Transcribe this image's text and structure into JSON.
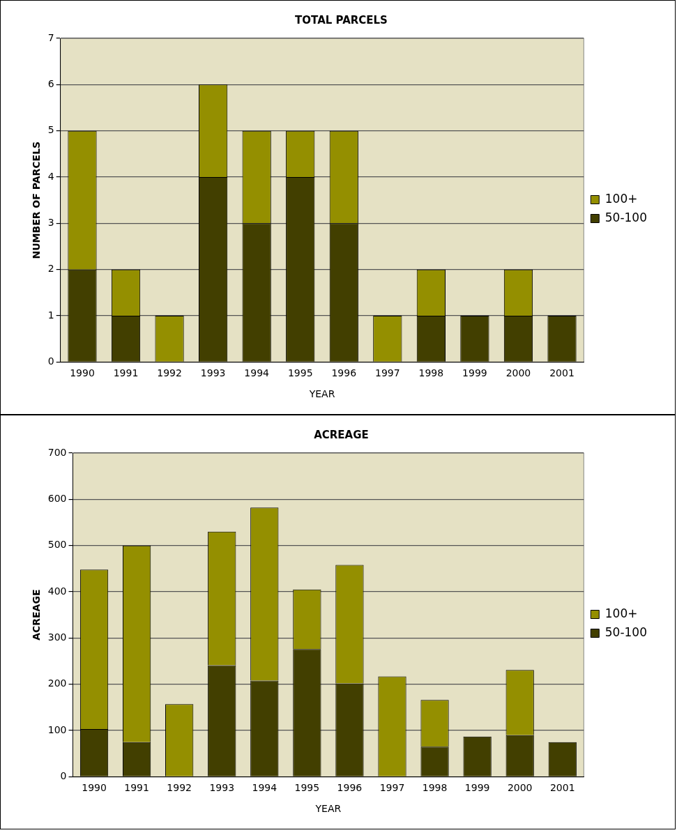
{
  "chart_data": [
    {
      "type": "bar",
      "title": "TOTAL PARCELS",
      "xlabel": "YEAR",
      "ylabel": "NUMBER OF PARCELS",
      "categories": [
        "1990",
        "1991",
        "1992",
        "1993",
        "1994",
        "1995",
        "1996",
        "1997",
        "1998",
        "1999",
        "2000",
        "2001"
      ],
      "stacked": true,
      "ylim": [
        0,
        7
      ],
      "yticks": [
        0,
        1,
        2,
        3,
        4,
        5,
        6,
        7
      ],
      "grid": "y",
      "legend": "right",
      "series": [
        {
          "name": "50-100",
          "color": "#423f00",
          "values": [
            2,
            1,
            0,
            4,
            3,
            4,
            3,
            0,
            1,
            1,
            1,
            1
          ]
        },
        {
          "name": "100+",
          "color": "#948f00",
          "values": [
            3,
            1,
            1,
            2,
            2,
            1,
            2,
            1,
            1,
            0,
            1,
            0
          ]
        }
      ]
    },
    {
      "type": "bar",
      "title": "ACREAGE",
      "xlabel": "YEAR",
      "ylabel": "ACREAGE",
      "categories": [
        "1990",
        "1991",
        "1992",
        "1993",
        "1994",
        "1995",
        "1996",
        "1997",
        "1998",
        "1999",
        "2000",
        "2001"
      ],
      "stacked": true,
      "ylim": [
        0,
        700
      ],
      "yticks": [
        0,
        100,
        200,
        300,
        400,
        500,
        600,
        700
      ],
      "grid": "y",
      "legend": "right",
      "series": [
        {
          "name": "50-100",
          "color": "#423f00",
          "values": [
            103,
            75,
            0,
            241,
            208,
            276,
            202,
            0,
            65,
            87,
            90,
            75
          ]
        },
        {
          "name": "100+",
          "color": "#948f00",
          "values": [
            345,
            425,
            157,
            289,
            374,
            129,
            256,
            217,
            101,
            0,
            141,
            0
          ]
        }
      ]
    }
  ]
}
